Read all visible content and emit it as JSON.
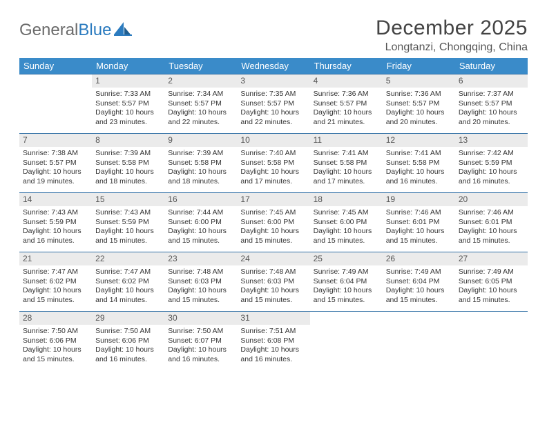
{
  "brand": {
    "name_part1": "General",
    "name_part2": "Blue"
  },
  "colors": {
    "header_bg": "#3a8bc9",
    "week_border": "#2f6fa5",
    "daynum_bg": "#ebebeb",
    "logo_gray": "#6b6b6b",
    "logo_blue": "#2b7bbf"
  },
  "title": "December 2025",
  "location": "Longtanzi, Chongqing, China",
  "weekdays": [
    "Sunday",
    "Monday",
    "Tuesday",
    "Wednesday",
    "Thursday",
    "Friday",
    "Saturday"
  ],
  "start_offset": 1,
  "days": [
    {
      "n": 1,
      "sunrise": "7:33 AM",
      "sunset": "5:57 PM",
      "dl_h": 10,
      "dl_m": 23
    },
    {
      "n": 2,
      "sunrise": "7:34 AM",
      "sunset": "5:57 PM",
      "dl_h": 10,
      "dl_m": 22
    },
    {
      "n": 3,
      "sunrise": "7:35 AM",
      "sunset": "5:57 PM",
      "dl_h": 10,
      "dl_m": 22
    },
    {
      "n": 4,
      "sunrise": "7:36 AM",
      "sunset": "5:57 PM",
      "dl_h": 10,
      "dl_m": 21
    },
    {
      "n": 5,
      "sunrise": "7:36 AM",
      "sunset": "5:57 PM",
      "dl_h": 10,
      "dl_m": 20
    },
    {
      "n": 6,
      "sunrise": "7:37 AM",
      "sunset": "5:57 PM",
      "dl_h": 10,
      "dl_m": 20
    },
    {
      "n": 7,
      "sunrise": "7:38 AM",
      "sunset": "5:57 PM",
      "dl_h": 10,
      "dl_m": 19
    },
    {
      "n": 8,
      "sunrise": "7:39 AM",
      "sunset": "5:58 PM",
      "dl_h": 10,
      "dl_m": 18
    },
    {
      "n": 9,
      "sunrise": "7:39 AM",
      "sunset": "5:58 PM",
      "dl_h": 10,
      "dl_m": 18
    },
    {
      "n": 10,
      "sunrise": "7:40 AM",
      "sunset": "5:58 PM",
      "dl_h": 10,
      "dl_m": 17
    },
    {
      "n": 11,
      "sunrise": "7:41 AM",
      "sunset": "5:58 PM",
      "dl_h": 10,
      "dl_m": 17
    },
    {
      "n": 12,
      "sunrise": "7:41 AM",
      "sunset": "5:58 PM",
      "dl_h": 10,
      "dl_m": 16
    },
    {
      "n": 13,
      "sunrise": "7:42 AM",
      "sunset": "5:59 PM",
      "dl_h": 10,
      "dl_m": 16
    },
    {
      "n": 14,
      "sunrise": "7:43 AM",
      "sunset": "5:59 PM",
      "dl_h": 10,
      "dl_m": 16
    },
    {
      "n": 15,
      "sunrise": "7:43 AM",
      "sunset": "5:59 PM",
      "dl_h": 10,
      "dl_m": 15
    },
    {
      "n": 16,
      "sunrise": "7:44 AM",
      "sunset": "6:00 PM",
      "dl_h": 10,
      "dl_m": 15
    },
    {
      "n": 17,
      "sunrise": "7:45 AM",
      "sunset": "6:00 PM",
      "dl_h": 10,
      "dl_m": 15
    },
    {
      "n": 18,
      "sunrise": "7:45 AM",
      "sunset": "6:00 PM",
      "dl_h": 10,
      "dl_m": 15
    },
    {
      "n": 19,
      "sunrise": "7:46 AM",
      "sunset": "6:01 PM",
      "dl_h": 10,
      "dl_m": 15
    },
    {
      "n": 20,
      "sunrise": "7:46 AM",
      "sunset": "6:01 PM",
      "dl_h": 10,
      "dl_m": 15
    },
    {
      "n": 21,
      "sunrise": "7:47 AM",
      "sunset": "6:02 PM",
      "dl_h": 10,
      "dl_m": 15
    },
    {
      "n": 22,
      "sunrise": "7:47 AM",
      "sunset": "6:02 PM",
      "dl_h": 10,
      "dl_m": 14
    },
    {
      "n": 23,
      "sunrise": "7:48 AM",
      "sunset": "6:03 PM",
      "dl_h": 10,
      "dl_m": 15
    },
    {
      "n": 24,
      "sunrise": "7:48 AM",
      "sunset": "6:03 PM",
      "dl_h": 10,
      "dl_m": 15
    },
    {
      "n": 25,
      "sunrise": "7:49 AM",
      "sunset": "6:04 PM",
      "dl_h": 10,
      "dl_m": 15
    },
    {
      "n": 26,
      "sunrise": "7:49 AM",
      "sunset": "6:04 PM",
      "dl_h": 10,
      "dl_m": 15
    },
    {
      "n": 27,
      "sunrise": "7:49 AM",
      "sunset": "6:05 PM",
      "dl_h": 10,
      "dl_m": 15
    },
    {
      "n": 28,
      "sunrise": "7:50 AM",
      "sunset": "6:06 PM",
      "dl_h": 10,
      "dl_m": 15
    },
    {
      "n": 29,
      "sunrise": "7:50 AM",
      "sunset": "6:06 PM",
      "dl_h": 10,
      "dl_m": 16
    },
    {
      "n": 30,
      "sunrise": "7:50 AM",
      "sunset": "6:07 PM",
      "dl_h": 10,
      "dl_m": 16
    },
    {
      "n": 31,
      "sunrise": "7:51 AM",
      "sunset": "6:08 PM",
      "dl_h": 10,
      "dl_m": 16
    }
  ],
  "labels": {
    "sunrise": "Sunrise:",
    "sunset": "Sunset:",
    "daylight": "Daylight:",
    "hours": "hours",
    "and": "and",
    "minutes": "minutes."
  }
}
